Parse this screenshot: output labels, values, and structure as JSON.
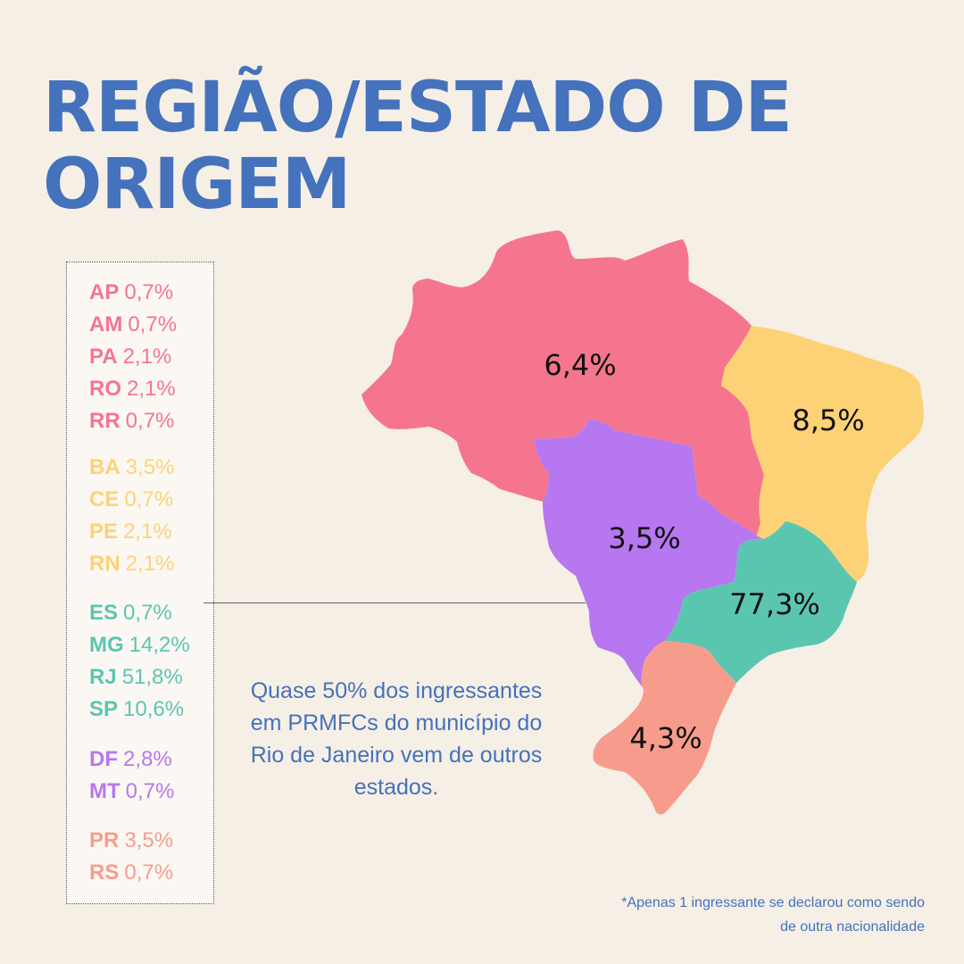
{
  "title": {
    "line1": "REGIÃO/ESTADO DE",
    "line2": "ORIGEM"
  },
  "colors": {
    "norte": "#f5758f",
    "nordeste": "#fdd276",
    "sudeste": "#5bc6b0",
    "centro_oeste": "#b777f0",
    "sul": "#f79c8c",
    "accent": "#4472bc"
  },
  "legend": {
    "norte": [
      {
        "code": "AP",
        "value": "0,7%"
      },
      {
        "code": "AM",
        "value": "0,7%"
      },
      {
        "code": "PA",
        "value": "2,1%"
      },
      {
        "code": "RO",
        "value": "2,1%"
      },
      {
        "code": "RR",
        "value": "0,7%"
      }
    ],
    "nordeste": [
      {
        "code": "BA",
        "value": "3,5%"
      },
      {
        "code": "CE",
        "value": "0,7%"
      },
      {
        "code": "PE",
        "value": "2,1%"
      },
      {
        "code": "RN",
        "value": "2,1%"
      }
    ],
    "sudeste": [
      {
        "code": "ES",
        "value": "0,7%"
      },
      {
        "code": "MG",
        "value": "14,2%"
      },
      {
        "code": "RJ",
        "value": "51,8%"
      },
      {
        "code": "SP",
        "value": "10,6%"
      }
    ],
    "centro_oeste": [
      {
        "code": "DF",
        "value": "2,8%"
      },
      {
        "code": "MT",
        "value": "0,7%"
      }
    ],
    "sul": [
      {
        "code": "PR",
        "value": "3,5%"
      },
      {
        "code": "RS",
        "value": "0,7%"
      }
    ]
  },
  "map": {
    "norte": "6,4%",
    "nordeste": "8,5%",
    "centro_oeste": "3,5%",
    "sudeste": "77,3%",
    "sul": "4,3%"
  },
  "note": "Quase 50% dos ingressantes em PRMFCs do município do Rio de Janeiro vem de outros estados.",
  "footnote": {
    "line1": "*Apenas 1 ingressante se declarou como sendo",
    "line2": "de outra nacionalidade"
  }
}
